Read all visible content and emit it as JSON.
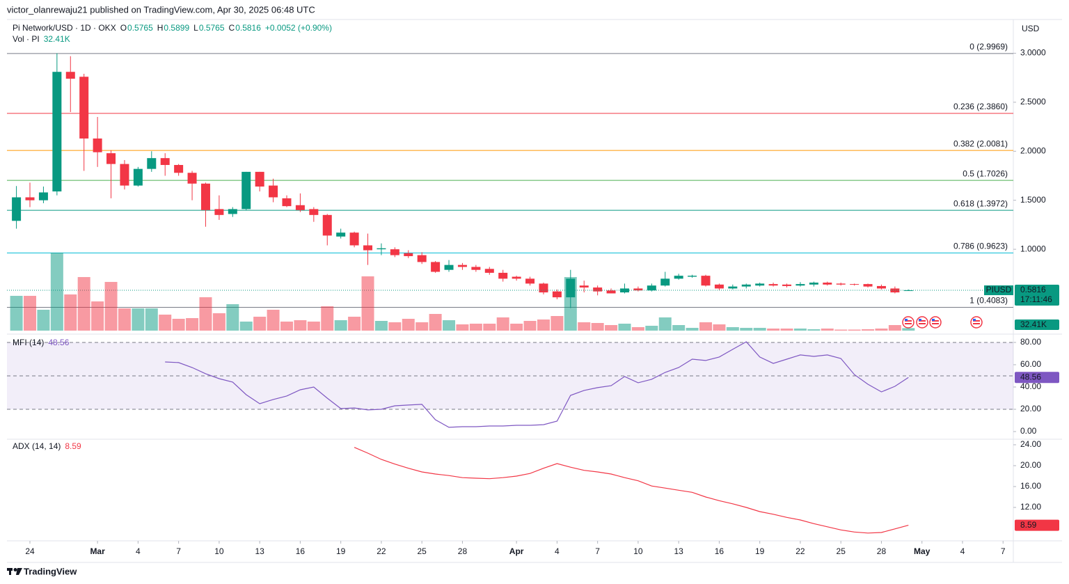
{
  "header": {
    "published": "victor_olanrewaju21 published on TradingView.com, Apr 30, 2025 06:48 UTC"
  },
  "footer": {
    "brand": "TradingView"
  },
  "chart_data": [
    {
      "type": "candlestick",
      "title": "Pi Network/USD · 1D · OKX",
      "currency": "USD",
      "legend_labels": [
        "O",
        "H",
        "L",
        "C"
      ],
      "change": "+0.0052 (+0.90%)",
      "symbol_tag": "PIUSD",
      "countdown": "17:11:46",
      "up_color": "#089981",
      "down_color": "#f23645",
      "x": [
        -1,
        0,
        1,
        2,
        3,
        4,
        5,
        6,
        7,
        8,
        9,
        10,
        11,
        12,
        13,
        14,
        15,
        16,
        17,
        18,
        19,
        20,
        21,
        22,
        23,
        24,
        25,
        26,
        27,
        28,
        29,
        30,
        31,
        32,
        33,
        34,
        35,
        36,
        37,
        38,
        39,
        40,
        41,
        42,
        43,
        44,
        45,
        46,
        47,
        48,
        49,
        50,
        51,
        52,
        53,
        54,
        55,
        56,
        57,
        58,
        59,
        60,
        61,
        62,
        63,
        64,
        65
      ],
      "open": [
        1.29,
        1.53,
        1.5,
        1.59,
        2.81,
        2.76,
        2.13,
        1.98,
        1.87,
        1.65,
        1.82,
        1.93,
        1.86,
        1.78,
        1.67,
        1.41,
        1.36,
        1.41,
        1.79,
        1.65,
        1.52,
        1.45,
        1.41,
        1.35,
        1.13,
        1.17,
        1.04,
        1.0,
        1.0,
        0.96,
        0.94,
        0.87,
        0.79,
        0.84,
        0.82,
        0.8,
        0.76,
        0.72,
        0.7,
        0.65,
        0.57,
        0.51,
        0.63,
        0.61,
        0.58,
        0.56,
        0.6,
        0.58,
        0.63,
        0.7,
        0.72,
        0.73,
        0.64,
        0.6,
        0.62,
        0.63,
        0.645,
        0.64,
        0.63,
        0.64,
        0.66,
        0.65,
        0.645,
        0.645,
        0.625,
        0.6,
        0.5765
      ],
      "high": [
        1.645,
        1.68,
        1.64,
        3.0,
        2.97,
        2.79,
        2.35,
        2.01,
        1.91,
        1.84,
        2.0,
        1.98,
        1.87,
        1.8,
        1.68,
        1.55,
        1.43,
        1.79,
        1.79,
        1.72,
        1.55,
        1.57,
        1.43,
        1.36,
        1.21,
        1.18,
        1.16,
        1.06,
        1.02,
        0.99,
        0.97,
        0.88,
        0.89,
        0.86,
        0.84,
        0.82,
        0.79,
        0.73,
        0.72,
        0.66,
        0.59,
        0.79,
        0.68,
        0.63,
        0.6,
        0.65,
        0.62,
        0.65,
        0.77,
        0.75,
        0.74,
        0.74,
        0.65,
        0.64,
        0.65,
        0.66,
        0.66,
        0.65,
        0.665,
        0.67,
        0.67,
        0.66,
        0.65,
        0.65,
        0.64,
        0.62,
        0.5899
      ],
      "low": [
        1.21,
        1.43,
        1.47,
        1.55,
        2.4,
        1.8,
        1.84,
        1.52,
        1.61,
        1.64,
        1.79,
        1.75,
        1.75,
        1.5,
        1.23,
        1.3,
        1.33,
        1.4,
        1.59,
        1.48,
        1.43,
        1.38,
        1.28,
        1.04,
        1.11,
        1.02,
        0.84,
        0.94,
        0.92,
        0.91,
        0.85,
        0.76,
        0.77,
        0.79,
        0.77,
        0.74,
        0.67,
        0.68,
        0.63,
        0.54,
        0.49,
        0.4,
        0.56,
        0.53,
        0.55,
        0.55,
        0.57,
        0.57,
        0.62,
        0.69,
        0.71,
        0.62,
        0.58,
        0.59,
        0.6,
        0.62,
        0.62,
        0.61,
        0.62,
        0.62,
        0.63,
        0.63,
        0.63,
        0.61,
        0.59,
        0.55,
        0.5765
      ],
      "close": [
        1.53,
        1.5,
        1.58,
        2.81,
        2.74,
        2.13,
        1.99,
        1.87,
        1.65,
        1.82,
        1.93,
        1.86,
        1.78,
        1.67,
        1.4,
        1.35,
        1.41,
        1.79,
        1.64,
        1.53,
        1.44,
        1.4,
        1.35,
        1.14,
        1.17,
        1.04,
        0.99,
        1.01,
        0.94,
        0.93,
        0.87,
        0.77,
        0.84,
        0.82,
        0.79,
        0.76,
        0.7,
        0.7,
        0.65,
        0.56,
        0.51,
        0.7,
        0.61,
        0.57,
        0.55,
        0.6,
        0.58,
        0.63,
        0.7,
        0.73,
        0.73,
        0.63,
        0.6,
        0.62,
        0.64,
        0.65,
        0.63,
        0.625,
        0.645,
        0.66,
        0.64,
        0.64,
        0.64,
        0.62,
        0.6,
        0.56,
        0.5816
      ],
      "xlim": [
        -1.7,
        72.76
      ],
      "xticks": [
        {
          "value": 0,
          "label": "24"
        },
        {
          "value": 5,
          "label": "Mar"
        },
        {
          "value": 8,
          "label": "4"
        },
        {
          "value": 11,
          "label": "7"
        },
        {
          "value": 14,
          "label": "10"
        },
        {
          "value": 17,
          "label": "13"
        },
        {
          "value": 20,
          "label": "16"
        },
        {
          "value": 23,
          "label": "19"
        },
        {
          "value": 26,
          "label": "22"
        },
        {
          "value": 29,
          "label": "25"
        },
        {
          "value": 32,
          "label": "28"
        },
        {
          "value": 36,
          "label": "Apr"
        },
        {
          "value": 39,
          "label": "4"
        },
        {
          "value": 42,
          "label": "7"
        },
        {
          "value": 45,
          "label": "10"
        },
        {
          "value": 48,
          "label": "13"
        },
        {
          "value": 51,
          "label": "16"
        },
        {
          "value": 54,
          "label": "19"
        },
        {
          "value": 57,
          "label": "22"
        },
        {
          "value": 60,
          "label": "25"
        },
        {
          "value": 63,
          "label": "28"
        },
        {
          "value": 66,
          "label": "May"
        },
        {
          "value": 69,
          "label": "4"
        },
        {
          "value": 72,
          "label": "7"
        }
      ],
      "ylim": [
        0.17,
        3.33
      ],
      "yticks": [
        {
          "value": 3,
          "label": "3.0000"
        },
        {
          "value": 2.5,
          "label": "2.5000"
        },
        {
          "value": 2,
          "label": "2.0000"
        },
        {
          "value": 1.5,
          "label": "1.5000"
        },
        {
          "value": 1,
          "label": "1.0000"
        }
      ],
      "levels": [
        {
          "label": "0 (2.9969)",
          "value": 2.9969,
          "color": "#787b86"
        },
        {
          "label": "0.236 (2.3860)",
          "value": 2.386,
          "color": "#f23645"
        },
        {
          "label": "0.382 (2.0081)",
          "value": 2.0081,
          "color": "#ff9800"
        },
        {
          "label": "0.5 (1.7026)",
          "value": 1.7026,
          "color": "#4caf50"
        },
        {
          "label": "0.618 (1.3972)",
          "value": 1.3972,
          "color": "#089981"
        },
        {
          "label": "0.786 (0.9623)",
          "value": 0.9623,
          "color": "#00bcd4"
        },
        {
          "label": "1 (0.4083)",
          "value": 0.4083,
          "color": "#787b86"
        }
      ]
    },
    {
      "type": "bar",
      "title": "Vol · PI",
      "current_label": "32.41K",
      "x": [
        -1,
        0,
        1,
        2,
        3,
        4,
        5,
        6,
        7,
        8,
        9,
        10,
        11,
        12,
        13,
        14,
        15,
        16,
        17,
        18,
        19,
        20,
        21,
        22,
        23,
        24,
        25,
        26,
        27,
        28,
        29,
        30,
        31,
        32,
        33,
        34,
        35,
        36,
        37,
        38,
        39,
        40,
        41,
        42,
        43,
        44,
        45,
        46,
        47,
        48,
        49,
        50,
        51,
        52,
        53,
        54,
        55,
        56,
        57,
        58,
        59,
        60,
        61,
        62,
        63,
        64,
        65
      ],
      "values": [
        445000,
        445000,
        267000,
        996800,
        462800,
        685300,
        373800,
        623000,
        284800,
        284800,
        284800,
        204700,
        151300,
        160200,
        427200,
        222500,
        338200,
        115700,
        178000,
        267000,
        115700,
        133500,
        115700,
        311500,
        133500,
        178000,
        694200,
        124600,
        106800,
        151300,
        106800,
        213600,
        133500,
        80100,
        89000,
        89000,
        169100,
        89000,
        124600,
        142400,
        186900,
        685300,
        106800,
        97900,
        71200,
        89000,
        44500,
        62300,
        169100,
        71200,
        35600,
        106800,
        80100,
        44500,
        35600,
        35600,
        26700,
        26700,
        26700,
        17800,
        26700,
        13350,
        13350,
        17800,
        26700,
        71200,
        32410
      ],
      "ylim": [
        0,
        1300000
      ]
    },
    {
      "type": "line",
      "title": "MFI (14)",
      "color": "#7e57c2",
      "x": [
        10,
        11,
        12,
        13,
        14,
        15,
        16,
        17,
        18,
        19,
        20,
        21,
        22,
        23,
        24,
        25,
        26,
        27,
        28,
        29,
        30,
        31,
        32,
        33,
        34,
        35,
        36,
        37,
        38,
        39,
        40,
        41,
        42,
        43,
        44,
        45,
        46,
        47,
        48,
        49,
        50,
        51,
        52,
        53,
        54,
        55,
        56,
        57,
        58,
        59,
        60,
        61,
        62,
        63,
        64,
        65
      ],
      "values": [
        62.5,
        61.9,
        57.5,
        51.9,
        47.5,
        44.4,
        33.1,
        25.0,
        28.8,
        31.9,
        37.5,
        40.0,
        30.0,
        20.6,
        21.2,
        19.4,
        20.0,
        23.1,
        23.8,
        24.4,
        10.6,
        3.8,
        4.4,
        4.4,
        5.0,
        5.0,
        5.6,
        5.6,
        6.2,
        9.4,
        32.5,
        36.9,
        39.4,
        41.2,
        49.4,
        43.8,
        46.9,
        53.1,
        57.5,
        65.0,
        63.8,
        66.9,
        73.8,
        80.6,
        66.9,
        61.2,
        65.0,
        68.8,
        67.5,
        68.8,
        65.6,
        51.2,
        42.5,
        35.6,
        40.6,
        48.56
      ],
      "ylim": [
        -6.25,
        85.6
      ],
      "yticks": [
        {
          "value": 80,
          "label": "80.00"
        },
        {
          "value": 60,
          "label": "60.00"
        },
        {
          "value": 40,
          "label": "40.00"
        },
        {
          "value": 20,
          "label": "20.00"
        },
        {
          "value": 0,
          "label": "0.00"
        }
      ],
      "band": {
        "upper": 80,
        "middle": 50,
        "lower": 20
      }
    },
    {
      "type": "line",
      "title": "ADX (14, 14)",
      "color": "#f23645",
      "x": [
        24,
        25,
        26,
        27,
        28,
        29,
        30,
        31,
        32,
        33,
        34,
        35,
        36,
        37,
        38,
        39,
        40,
        41,
        42,
        43,
        44,
        45,
        46,
        47,
        48,
        49,
        50,
        51,
        52,
        53,
        54,
        55,
        56,
        57,
        58,
        59,
        60,
        61,
        62,
        63,
        64,
        65
      ],
      "values": [
        23.5,
        22.4,
        21.2,
        20.3,
        19.5,
        18.8,
        18.4,
        18.1,
        17.7,
        17.6,
        17.5,
        17.7,
        18.0,
        18.5,
        19.5,
        20.4,
        19.7,
        19.1,
        18.8,
        18.4,
        17.7,
        17.1,
        16.1,
        15.7,
        15.3,
        14.9,
        14.0,
        13.3,
        12.7,
        12.0,
        11.2,
        10.7,
        10.1,
        9.6,
        8.9,
        8.3,
        7.7,
        7.3,
        7.1,
        7.2,
        7.9,
        8.59
      ],
      "ylim": [
        5.87,
        24.93
      ],
      "yticks": [
        {
          "value": 24,
          "label": "24.00"
        },
        {
          "value": 20,
          "label": "20.00"
        },
        {
          "value": 16,
          "label": "16.00"
        },
        {
          "value": 12,
          "label": "12.00"
        }
      ]
    }
  ]
}
